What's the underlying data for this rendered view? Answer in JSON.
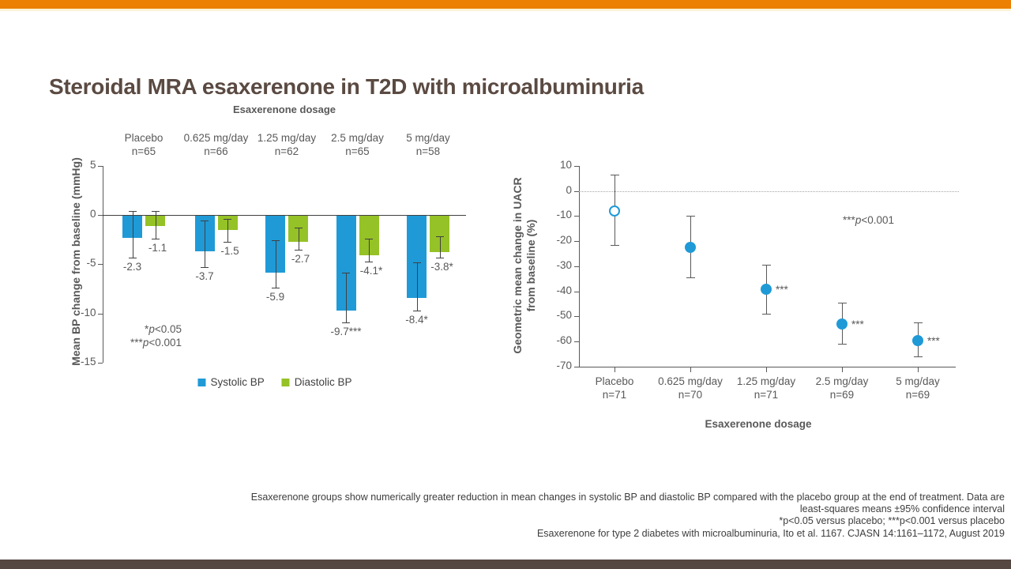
{
  "page": {
    "title": "Steroidal MRA esaxerenone in T2D with microalbuminuria",
    "accent_color": "#ec8004",
    "accent_underline_color": "#fbf2d5",
    "footer_color": "#554741"
  },
  "caption": {
    "lines": [
      "Esaxerenone groups show numerically greater reduction in mean changes in systolic BP and diastolic BP compared with the placebo group at the end of treatment. Data are",
      "least-squares means ±95% confidence interval",
      "*p<0.05 versus placebo; ***p<0.001 versus placebo",
      "Esaxerenone for type 2 diabetes with microalbuminuria, Ito et al. 1167. CJASN 14:1161–1172, August 2019"
    ]
  },
  "chart_data": [
    {
      "type": "bar",
      "xlabel_top": "Esaxerenone dosage",
      "ylabel": "Mean BP change from baseline (mmHg)",
      "ylim": [
        -15,
        5
      ],
      "yticks": [
        5,
        0,
        -5,
        -10,
        -15
      ],
      "grid": false,
      "legend_position": "bottom",
      "categories": [
        {
          "label": "Placebo",
          "n": "n=65"
        },
        {
          "label": "0.625 mg/day",
          "n": "n=66"
        },
        {
          "label": "1.25 mg/day",
          "n": "n=62"
        },
        {
          "label": "2.5 mg/day",
          "n": "n=65"
        },
        {
          "label": "5 mg/day",
          "n": "n=58"
        }
      ],
      "series": [
        {
          "name": "Systolic BP",
          "color": "#1f9ad7",
          "values": [
            -2.3,
            -3.7,
            -5.9,
            -9.7,
            -8.4
          ],
          "value_labels": [
            "-2.3",
            "-3.7",
            "-5.9",
            "-9.7***",
            "-8.4*"
          ],
          "ci_hi": [
            0.4,
            -0.6,
            -2.6,
            -5.9,
            -4.8
          ],
          "ci_lo": [
            -4.3,
            -5.3,
            -7.4,
            -10.9,
            -9.7
          ]
        },
        {
          "name": "Diastolic BP",
          "color": "#95c226",
          "values": [
            -1.1,
            -1.5,
            -2.7,
            -4.1,
            -3.8
          ],
          "value_labels": [
            "-1.1",
            "-1.5",
            "-2.7",
            "-4.1*",
            "-3.8*"
          ],
          "ci_hi": [
            0.4,
            -0.4,
            -1.3,
            -2.4,
            -2.2
          ],
          "ci_lo": [
            -2.4,
            -2.7,
            -3.5,
            -4.7,
            -4.3
          ]
        }
      ],
      "note_lines": [
        "*p<0.05",
        "***p<0.001"
      ]
    },
    {
      "type": "scatter",
      "xlabel": "Esaxerenone dosage",
      "ylabel_lines": [
        "Geometric mean change in UACR",
        "from baseline (%)"
      ],
      "ylim": [
        -70,
        10
      ],
      "yticks": [
        10,
        0,
        -10,
        -20,
        -30,
        -40,
        -50,
        -60,
        -70
      ],
      "zero_reference_line": "dotted",
      "marker_color": "#1f9ad7",
      "categories": [
        {
          "label": "Placebo",
          "n": "n=71"
        },
        {
          "label": "0.625 mg/day",
          "n": "n=70"
        },
        {
          "label": "1.25 mg/day",
          "n": "n=71"
        },
        {
          "label": "2.5 mg/day",
          "n": "n=69"
        },
        {
          "label": "5 mg/day",
          "n": "n=69"
        }
      ],
      "points": {
        "values": [
          -8,
          -22.5,
          -39,
          -53,
          -59.5
        ],
        "ci_hi": [
          6.5,
          -10,
          -29.5,
          -44.5,
          -52.5
        ],
        "ci_lo": [
          -21.5,
          -34.5,
          -49,
          -61,
          -66
        ],
        "marker": [
          "open",
          "filled",
          "filled",
          "filled",
          "filled"
        ],
        "sig": [
          "",
          "",
          "***",
          "***",
          "***"
        ]
      },
      "annotation": "***p<0.001"
    }
  ]
}
